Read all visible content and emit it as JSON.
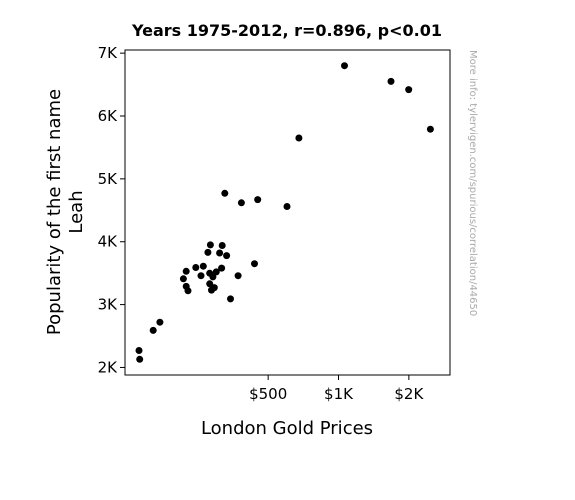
{
  "chart_data": {
    "type": "scatter",
    "title": "Years 1975-2012, r=0.896, p<0.01",
    "xlabel": "London Gold Prices",
    "ylabel_line1": "Popularity of the first name",
    "ylabel_line2": "Leah",
    "x_scale": "log",
    "xlim": [
      122,
      3000
    ],
    "ylim": [
      1880,
      7050
    ],
    "xticks": [
      {
        "value": 500,
        "label": "$500"
      },
      {
        "value": 1000,
        "label": "$1K"
      },
      {
        "value": 2000,
        "label": "$2K"
      }
    ],
    "yticks": [
      {
        "value": 2000,
        "label": "2K"
      },
      {
        "value": 3000,
        "label": "3K"
      },
      {
        "value": 4000,
        "label": "4K"
      },
      {
        "value": 5000,
        "label": "5K"
      },
      {
        "value": 6000,
        "label": "6K"
      },
      {
        "value": 7000,
        "label": "7K"
      }
    ],
    "grid": false,
    "marker_color": "#000000",
    "points": [
      {
        "x": 140,
        "y": 2270
      },
      {
        "x": 141,
        "y": 2130
      },
      {
        "x": 161,
        "y": 2590
      },
      {
        "x": 172,
        "y": 2720
      },
      {
        "x": 217,
        "y": 3410
      },
      {
        "x": 223,
        "y": 3530
      },
      {
        "x": 223,
        "y": 3290
      },
      {
        "x": 227,
        "y": 3220
      },
      {
        "x": 245,
        "y": 3590
      },
      {
        "x": 258,
        "y": 3460
      },
      {
        "x": 264,
        "y": 3610
      },
      {
        "x": 276,
        "y": 3830
      },
      {
        "x": 283,
        "y": 3950
      },
      {
        "x": 281,
        "y": 3500
      },
      {
        "x": 281,
        "y": 3330
      },
      {
        "x": 290,
        "y": 3440
      },
      {
        "x": 294,
        "y": 3270
      },
      {
        "x": 286,
        "y": 3230
      },
      {
        "x": 300,
        "y": 3520
      },
      {
        "x": 310,
        "y": 3820
      },
      {
        "x": 318,
        "y": 3940
      },
      {
        "x": 316,
        "y": 3580
      },
      {
        "x": 332,
        "y": 3780
      },
      {
        "x": 326,
        "y": 4770
      },
      {
        "x": 345,
        "y": 3090
      },
      {
        "x": 372,
        "y": 3460
      },
      {
        "x": 384,
        "y": 4620
      },
      {
        "x": 437,
        "y": 3650
      },
      {
        "x": 451,
        "y": 4670
      },
      {
        "x": 602,
        "y": 4560
      },
      {
        "x": 677,
        "y": 5650
      },
      {
        "x": 1061,
        "y": 6800
      },
      {
        "x": 1677,
        "y": 6550
      },
      {
        "x": 1998,
        "y": 6420
      },
      {
        "x": 2472,
        "y": 5790
      }
    ]
  },
  "watermark_text": "More info: tylervigen.com/spurious/correlation/44650"
}
